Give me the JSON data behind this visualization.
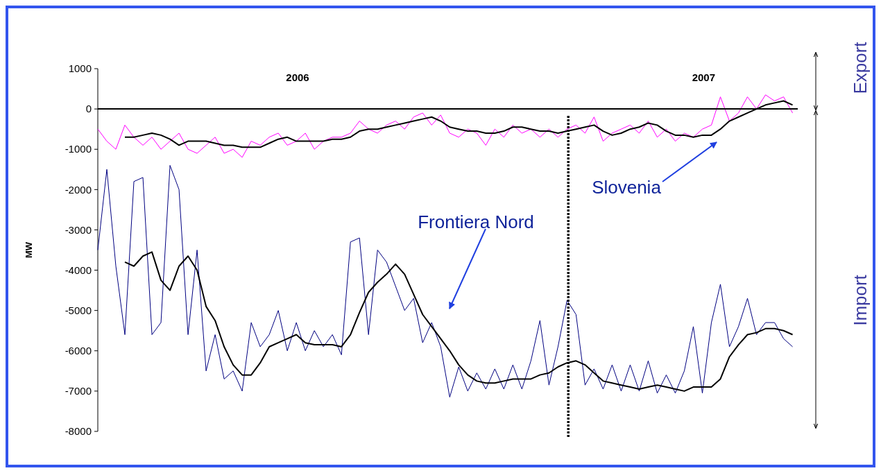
{
  "chart_data": {
    "type": "line",
    "ylabel": "MW",
    "ylim": [
      -8000,
      1000
    ],
    "yticks": [
      -8000,
      -7000,
      -6000,
      -5000,
      -4000,
      -3000,
      -2000,
      -1000,
      0,
      1000
    ],
    "xlim": [
      "2006-01-01",
      "2007-06-28"
    ],
    "xticks": [
      {
        "value": "2006-06-05",
        "label": "2006"
      },
      {
        "value": "2007-04-16",
        "label": "2007"
      }
    ],
    "grid": false,
    "marker": "none",
    "line_style": "solid",
    "x": [
      "2006-01-01",
      "2006-01-08",
      "2006-01-15",
      "2006-01-22",
      "2006-01-29",
      "2006-02-05",
      "2006-02-12",
      "2006-02-19",
      "2006-02-26",
      "2006-03-05",
      "2006-03-12",
      "2006-03-19",
      "2006-03-26",
      "2006-04-02",
      "2006-04-09",
      "2006-04-16",
      "2006-04-23",
      "2006-04-30",
      "2006-05-07",
      "2006-05-14",
      "2006-05-21",
      "2006-05-28",
      "2006-06-04",
      "2006-06-11",
      "2006-06-18",
      "2006-06-25",
      "2006-07-02",
      "2006-07-09",
      "2006-07-16",
      "2006-07-23",
      "2006-07-30",
      "2006-08-06",
      "2006-08-13",
      "2006-08-20",
      "2006-08-27",
      "2006-09-03",
      "2006-09-10",
      "2006-09-17",
      "2006-09-24",
      "2006-10-01",
      "2006-10-08",
      "2006-10-15",
      "2006-10-22",
      "2006-10-29",
      "2006-11-05",
      "2006-11-12",
      "2006-11-19",
      "2006-11-26",
      "2006-12-03",
      "2006-12-10",
      "2006-12-17",
      "2006-12-24",
      "2006-12-31",
      "2007-01-07",
      "2007-01-14",
      "2007-01-21",
      "2007-01-28",
      "2007-02-04",
      "2007-02-11",
      "2007-02-18",
      "2007-02-25",
      "2007-03-04",
      "2007-03-11",
      "2007-03-18",
      "2007-03-25",
      "2007-04-01",
      "2007-04-08",
      "2007-04-15",
      "2007-04-22",
      "2007-04-29",
      "2007-05-06",
      "2007-05-13",
      "2007-05-20",
      "2007-05-27",
      "2007-06-03",
      "2007-06-10",
      "2007-06-17",
      "2007-06-24"
    ],
    "series": [
      {
        "color": "#ff00ff",
        "values": [
          -500,
          -800,
          -1000,
          -400,
          -700,
          -900,
          -700,
          -1000,
          -800,
          -600,
          -1000,
          -1100,
          -900,
          -700,
          -1100,
          -1000,
          -1200,
          -800,
          -900,
          -700,
          -600,
          -900,
          -800,
          -600,
          -1000,
          -800,
          -700,
          -700,
          -600,
          -300,
          -500,
          -600,
          -400,
          -300,
          -500,
          -200,
          -100,
          -400,
          -150,
          -600,
          -700,
          -500,
          -600,
          -900,
          -500,
          -700,
          -400,
          -600,
          -500,
          -700,
          -500,
          -700,
          -500,
          -400,
          -600,
          -200,
          -800,
          -600,
          -500,
          -400,
          -600,
          -300,
          -700,
          -500,
          -800,
          -600,
          -700,
          -500,
          -400,
          300,
          -300,
          -100,
          300,
          0,
          350,
          200,
          300,
          -100
        ]
      },
      {
        "color": "#000080",
        "values": [
          -3500,
          -1500,
          -3900,
          -5600,
          -1800,
          -1700,
          -5600,
          -5300,
          -1400,
          -2000,
          -5600,
          -3500,
          -6500,
          -5600,
          -6700,
          -6500,
          -7000,
          -5300,
          -5900,
          -5600,
          -5000,
          -6000,
          -5300,
          -6000,
          -5500,
          -5900,
          -5600,
          -6100,
          -3300,
          -3200,
          -5600,
          -3500,
          -3800,
          -4400,
          -5000,
          -4700,
          -5800,
          -5300,
          -5900,
          -7150,
          -6400,
          -7000,
          -6550,
          -6950,
          -6450,
          -6950,
          -6350,
          -6950,
          -6250,
          -5250,
          -6850,
          -5900,
          -4750,
          -5100,
          -6850,
          -6450,
          -6950,
          -6350,
          -7000,
          -6350,
          -7000,
          -6250,
          -7050,
          -6600,
          -7050,
          -6500,
          -5400,
          -7050,
          -5300,
          -4350,
          -5900,
          -5400,
          -4700,
          -5600,
          -5300,
          -5300,
          -5700,
          -5900
        ]
      },
      {
        "color": "#000000",
        "values": [
          null,
          null,
          null,
          -700,
          -700,
          -650,
          -600,
          -650,
          -750,
          -900,
          -800,
          -800,
          -800,
          -850,
          -900,
          -900,
          -950,
          -950,
          -950,
          -850,
          -750,
          -700,
          -800,
          -800,
          -800,
          -800,
          -750,
          -750,
          -700,
          -550,
          -500,
          -500,
          -450,
          -400,
          -350,
          -300,
          -250,
          -200,
          -300,
          -450,
          -500,
          -550,
          -550,
          -600,
          -600,
          -550,
          -450,
          -450,
          -500,
          -550,
          -550,
          -600,
          -550,
          -500,
          -450,
          -400,
          -550,
          -650,
          -600,
          -500,
          -450,
          -350,
          -400,
          -550,
          -650,
          -650,
          -700,
          -650,
          -650,
          -500,
          -300,
          -200,
          -100,
          0,
          100,
          150,
          200,
          100
        ]
      },
      {
        "color": "#000000",
        "values": [
          null,
          null,
          null,
          -3800,
          -3900,
          -3650,
          -3550,
          -4250,
          -4500,
          -3900,
          -3650,
          -4000,
          -4900,
          -5250,
          -5900,
          -6350,
          -6600,
          -6600,
          -6300,
          -5900,
          -5800,
          -5700,
          -5600,
          -5800,
          -5850,
          -5850,
          -5850,
          -5900,
          -5600,
          -5050,
          -4550,
          -4300,
          -4100,
          -3850,
          -4100,
          -4600,
          -5100,
          -5400,
          -5700,
          -6000,
          -6350,
          -6600,
          -6750,
          -6800,
          -6800,
          -6750,
          -6700,
          -6700,
          -6700,
          -6600,
          -6550,
          -6400,
          -6300,
          -6250,
          -6350,
          -6550,
          -6750,
          -6800,
          -6850,
          -6900,
          -6950,
          -6900,
          -6850,
          -6900,
          -6950,
          -7000,
          -6900,
          -6900,
          -6900,
          -6700,
          -6150,
          -5850,
          -5600,
          -5550,
          -5450,
          -5450,
          -5500,
          -5600
        ]
      }
    ],
    "ref_lines": [
      {
        "axis": "x",
        "value": "2007-01-01",
        "color": "#000000",
        "line_style": "dotted"
      }
    ],
    "annotations": [
      "Slovenia",
      "Frontiera Nord",
      "Export",
      "Import"
    ]
  }
}
